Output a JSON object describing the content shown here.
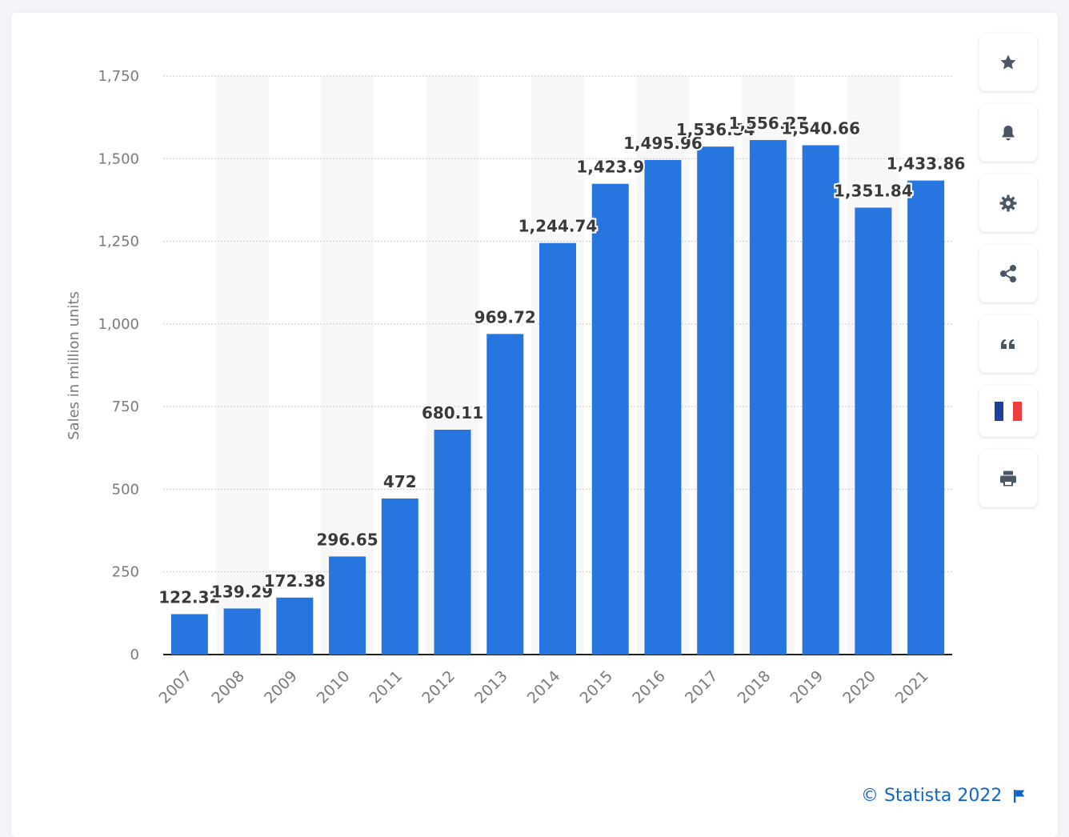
{
  "chart_data": {
    "type": "bar",
    "categories": [
      "2007",
      "2008",
      "2009",
      "2010",
      "2011",
      "2012",
      "2013",
      "2014",
      "2015",
      "2016",
      "2017",
      "2018",
      "2019",
      "2020",
      "2021"
    ],
    "values": [
      122.32,
      139.29,
      172.38,
      296.65,
      472,
      680.11,
      969.72,
      1244.74,
      1423.9,
      1495.96,
      1536.54,
      1556.27,
      1540.66,
      1351.84,
      1433.86
    ],
    "value_labels": [
      "122.32",
      "139.29",
      "172.38",
      "296.65",
      "472",
      "680.11",
      "969.72",
      "1,244.74",
      "1,423.9",
      "1,495.96",
      "1,536.54",
      "1,556.27",
      "1,540.66",
      "1,351.84",
      "1,433.86"
    ],
    "ylabel": "Sales in million units",
    "xlabel": "",
    "ylim": [
      0,
      1750
    ],
    "yticks": [
      0,
      250,
      500,
      750,
      1000,
      1250,
      1500,
      1750
    ],
    "ytick_labels": [
      "0",
      "250",
      "500",
      "750",
      "1,000",
      "1,250",
      "1,500",
      "1,750"
    ],
    "grid": true,
    "bar_color": "#2775de",
    "band_color": "#f7f7f8"
  },
  "toolbar": {
    "items": [
      {
        "icon": "star-icon",
        "label": "favorite"
      },
      {
        "icon": "bell-icon",
        "label": "notification"
      },
      {
        "icon": "gear-icon",
        "label": "settings"
      },
      {
        "icon": "share-icon",
        "label": "share"
      },
      {
        "icon": "quote-icon",
        "label": "cite"
      },
      {
        "icon": "french-flag-icon",
        "label": "language"
      },
      {
        "icon": "print-icon",
        "label": "print"
      }
    ]
  },
  "credit": {
    "text": "© Statista 2022",
    "flag_icon": "report-flag-icon"
  }
}
